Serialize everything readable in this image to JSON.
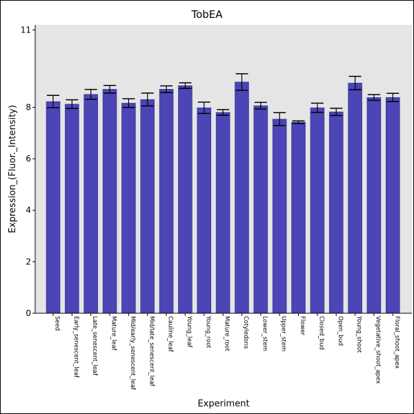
{
  "chart_data": {
    "type": "bar",
    "title": "TobEA",
    "xlabel": "Experiment",
    "ylabel": "Expression_(Fluor._Intensity)",
    "ylim": [
      0,
      11.2
    ],
    "yticks": [
      0,
      2,
      4,
      6,
      8,
      11
    ],
    "grid": false,
    "categories": [
      "Seed",
      "Early_senescent_leaf",
      "Late_senescent_leaf",
      "Mature_leaf",
      "Mid/early_senescent_leaf",
      "Mid/late_senescent_leaf",
      "Cauline_leaf",
      "Young_leaf",
      "Young_root",
      "Mature_root",
      "Cotyledons",
      "Lower_stem",
      "Upper_stem",
      "Flower",
      "Closed_bud",
      "Open_bud",
      "Young_shoot",
      "Vegetative_shoot_apex",
      "Floral_shoot_apex"
    ],
    "values": [
      8.22,
      8.12,
      8.5,
      8.7,
      8.16,
      8.3,
      8.7,
      8.84,
      7.98,
      7.8,
      8.98,
      8.06,
      7.54,
      7.42,
      7.98,
      7.82,
      8.94,
      8.38,
      8.38
    ],
    "errors": [
      0.24,
      0.17,
      0.19,
      0.15,
      0.17,
      0.25,
      0.13,
      0.11,
      0.22,
      0.11,
      0.32,
      0.13,
      0.25,
      0.05,
      0.18,
      0.14,
      0.26,
      0.11,
      0.16
    ],
    "bar_color": "#4b45b5",
    "background_color": "#e5e5e5"
  }
}
